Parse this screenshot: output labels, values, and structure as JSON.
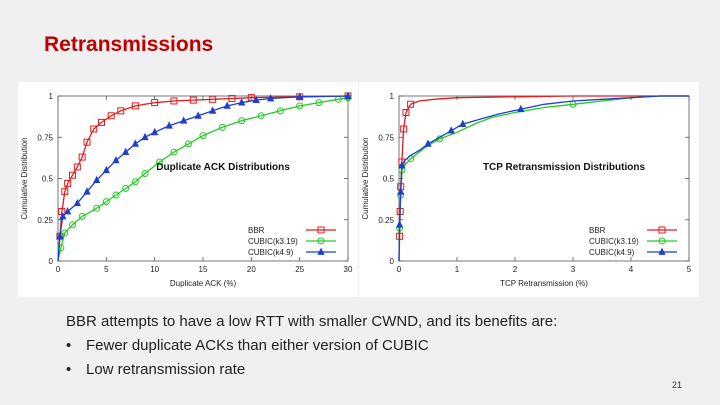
{
  "slide": {
    "title": "Retransmissions",
    "body_text": "BBR attempts to have a low RTT with smaller CWND, and its benefits are:",
    "bullets": [
      "Fewer duplicate ACKs than either version of CUBIC",
      "Low retransmission rate"
    ],
    "bullet_glyph": "•",
    "page_number": "21"
  },
  "colors": {
    "title": "#c00000",
    "BBR": "#e41a1c",
    "CUBIC(k3.19)": "#22cc22",
    "CUBIC(k4.9)": "#1f3fcf"
  },
  "chart_data": [
    {
      "type": "line",
      "title": "Duplicate ACK  Distributions",
      "xlabel": "Duplicate ACK (%)",
      "ylabel": "Cumulative Distribution",
      "xlim": [
        0,
        30
      ],
      "ylim": [
        0,
        1
      ],
      "xticks": [
        0,
        5,
        10,
        15,
        20,
        25,
        30
      ],
      "yticks": [
        0,
        0.25,
        0.5,
        0.75,
        1
      ],
      "ytick_labels": [
        "0",
        "0.25",
        "0.5",
        "0.75",
        "1"
      ],
      "legend_position": "bottom-right",
      "series": [
        {
          "name": "BBR",
          "marker": "square",
          "x": [
            0,
            0.2,
            0.4,
            0.7,
            1.0,
            1.5,
            2.0,
            2.5,
            3.0,
            3.7,
            4.5,
            5.5,
            6.5,
            8.0,
            10.0,
            12.0,
            14.0,
            16.0,
            18.0,
            20.0,
            25.0,
            30.0
          ],
          "y": [
            0,
            0.15,
            0.3,
            0.42,
            0.47,
            0.52,
            0.57,
            0.63,
            0.72,
            0.8,
            0.84,
            0.88,
            0.91,
            0.94,
            0.96,
            0.97,
            0.975,
            0.98,
            0.985,
            0.99,
            0.995,
            1.0
          ]
        },
        {
          "name": "CUBIC(k3.19)",
          "marker": "circle",
          "x": [
            0,
            0.3,
            0.7,
            1.5,
            2.5,
            4.0,
            5.0,
            6.0,
            7.0,
            8.0,
            9.0,
            10.5,
            12.0,
            13.5,
            15.0,
            17.0,
            19.0,
            21.0,
            23.0,
            25.0,
            27.0,
            29.0,
            30.0
          ],
          "y": [
            0,
            0.08,
            0.17,
            0.22,
            0.27,
            0.32,
            0.36,
            0.4,
            0.44,
            0.48,
            0.53,
            0.6,
            0.66,
            0.71,
            0.76,
            0.81,
            0.85,
            0.88,
            0.91,
            0.94,
            0.96,
            0.98,
            0.99
          ]
        },
        {
          "name": "CUBIC(k4.9)",
          "marker": "triangle",
          "x": [
            0,
            0.2,
            0.5,
            1.0,
            2.0,
            3.0,
            4.0,
            5.0,
            6.0,
            7.0,
            8.0,
            9.0,
            10.0,
            11.5,
            13.0,
            14.5,
            16.0,
            17.5,
            19.0,
            20.5,
            22.0,
            25.0,
            30.0
          ],
          "y": [
            0,
            0.15,
            0.27,
            0.3,
            0.35,
            0.42,
            0.49,
            0.55,
            0.61,
            0.66,
            0.71,
            0.75,
            0.78,
            0.82,
            0.85,
            0.88,
            0.91,
            0.94,
            0.96,
            0.975,
            0.985,
            0.995,
            1.0
          ]
        }
      ]
    },
    {
      "type": "line",
      "title": "TCP Retransmission Distributions",
      "xlabel": "TCP Retransmission (%)",
      "ylabel": "Cumulative Distribution",
      "xlim": [
        0,
        5
      ],
      "ylim": [
        0,
        1
      ],
      "xticks": [
        0,
        1,
        2,
        3,
        4,
        5
      ],
      "yticks": [
        0,
        0.25,
        0.5,
        0.75,
        1
      ],
      "ytick_labels": [
        "0",
        "0.25",
        "0.5",
        "0.75",
        "1"
      ],
      "legend_position": "bottom-right",
      "series": [
        {
          "name": "BBR",
          "marker": "square",
          "x": [
            0,
            0.01,
            0.02,
            0.03,
            0.05,
            0.08,
            0.12,
            0.2,
            0.35,
            0.6,
            1.0,
            2.0,
            3.0,
            4.0,
            5.0
          ],
          "y": [
            0,
            0.15,
            0.3,
            0.45,
            0.6,
            0.8,
            0.9,
            0.95,
            0.97,
            0.98,
            0.99,
            0.995,
            1.0,
            1.0,
            1.0
          ],
          "markers_at": [
            0.01,
            0.02,
            0.03,
            0.05,
            0.08,
            0.12,
            0.2
          ]
        },
        {
          "name": "CUBIC(k3.19)",
          "marker": "circle",
          "x": [
            0,
            0.01,
            0.03,
            0.05,
            0.1,
            0.2,
            0.35,
            0.5,
            0.7,
            1.0,
            1.3,
            1.6,
            2.0,
            2.5,
            3.0,
            3.5,
            4.0,
            4.5,
            5.0
          ],
          "y": [
            0,
            0.2,
            0.4,
            0.55,
            0.58,
            0.62,
            0.66,
            0.7,
            0.74,
            0.78,
            0.83,
            0.87,
            0.9,
            0.93,
            0.95,
            0.97,
            0.99,
            1.0,
            1.0
          ],
          "markers_at": [
            0.01,
            0.03,
            0.05,
            0.2,
            0.7,
            3.0
          ]
        },
        {
          "name": "CUBIC(k4.9)",
          "marker": "triangle",
          "x": [
            0,
            0.01,
            0.03,
            0.05,
            0.1,
            0.2,
            0.35,
            0.5,
            0.7,
            0.9,
            1.1,
            1.4,
            1.7,
            2.1,
            2.5,
            3.0,
            3.5,
            4.0,
            4.5,
            5.0
          ],
          "y": [
            0,
            0.22,
            0.42,
            0.58,
            0.61,
            0.64,
            0.67,
            0.71,
            0.75,
            0.79,
            0.83,
            0.86,
            0.89,
            0.92,
            0.95,
            0.97,
            0.98,
            0.99,
            1.0,
            1.0
          ],
          "markers_at": [
            0.01,
            0.03,
            0.05,
            0.5,
            0.9,
            1.1,
            2.1
          ]
        }
      ]
    }
  ]
}
